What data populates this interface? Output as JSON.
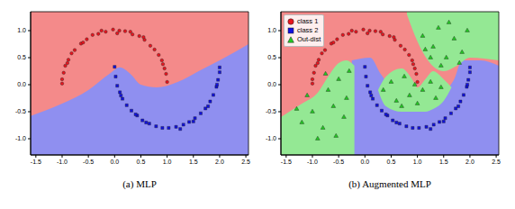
{
  "chart_data": [
    {
      "type": "scatter",
      "title": "(a) MLP",
      "xlim": [
        -1.6,
        2.55
      ],
      "ylim": [
        -1.3,
        1.35
      ],
      "xticks": [
        -1.5,
        {
          "value": -1,
          "label": "-1.0"
        },
        -0.5,
        {
          "value": 0,
          "label": "0.0"
        },
        0.5,
        {
          "value": 1,
          "label": "1.0"
        },
        1.5,
        {
          "value": 2,
          "label": "2.0"
        },
        2.5
      ],
      "yticks": [
        {
          "value": -1,
          "label": "-1.0"
        },
        -0.5,
        {
          "value": 0,
          "label": "0.0"
        },
        0.5,
        {
          "value": 1,
          "label": "1.0"
        }
      ],
      "regions": [
        {
          "color": "#f48a8a",
          "x": [
            -1.6,
            2.55
          ],
          "low": [
            -1.3,
            -1.3
          ],
          "high": [
            1.35,
            1.35
          ]
        },
        {
          "color": "#8f8ff0",
          "x": [
            -1.6,
            -1.0,
            -0.5,
            -0.1,
            0.1,
            0.3,
            0.5,
            0.8,
            1.2,
            1.6,
            2.0,
            2.55
          ],
          "low": [
            -1.3,
            -1.3,
            -1.3,
            -1.3,
            -1.3,
            -1.3,
            -1.3,
            -1.3,
            -1.3,
            -1.3,
            -1.3,
            -1.3
          ],
          "high": [
            -0.58,
            -0.35,
            -0.1,
            0.2,
            0.32,
            0.2,
            0.0,
            -0.05,
            0.05,
            0.25,
            0.45,
            0.75
          ]
        }
      ],
      "series": [
        {
          "color": "#e8141e",
          "marker": "circle",
          "x": [
            1.0,
            0.98,
            0.95,
            0.9,
            0.84,
            0.76,
            0.68,
            0.57,
            0.47,
            0.34,
            0.2,
            0.09,
            -0.03,
            -0.17,
            -0.31,
            -0.42,
            -0.53,
            -0.64,
            -0.76,
            -0.82,
            -0.88,
            -0.94,
            -0.97,
            -1.0,
            -1.0,
            0.05,
            0.55,
            -0.6,
            0.92,
            -0.9,
            0.3,
            -0.25
          ],
          "y": [
            0.05,
            0.2,
            0.3,
            0.45,
            0.55,
            0.65,
            0.72,
            0.83,
            0.9,
            0.93,
            0.99,
            1.0,
            1.02,
            0.98,
            0.94,
            0.92,
            0.84,
            0.76,
            0.64,
            0.58,
            0.46,
            0.35,
            0.22,
            0.1,
            0.02,
            0.95,
            0.88,
            0.78,
            0.38,
            0.4,
            0.98,
            1.0
          ]
        },
        {
          "color": "#1010e0",
          "marker": "square",
          "x": [
            0.0,
            0.02,
            0.05,
            0.1,
            0.15,
            0.23,
            0.32,
            0.43,
            0.53,
            0.66,
            0.79,
            0.91,
            1.03,
            1.17,
            1.31,
            1.42,
            1.53,
            1.64,
            1.73,
            1.82,
            1.88,
            1.94,
            1.97,
            2.0,
            2.0,
            0.12,
            0.6,
            1.25,
            1.78,
            1.95,
            0.4,
            1.5
          ],
          "y": [
            0.33,
            0.15,
            -0.02,
            -0.14,
            -0.26,
            -0.38,
            -0.48,
            -0.57,
            -0.66,
            -0.72,
            -0.77,
            -0.8,
            -0.8,
            -0.78,
            -0.74,
            -0.69,
            -0.62,
            -0.53,
            -0.44,
            -0.31,
            -0.19,
            -0.04,
            0.09,
            0.23,
            0.32,
            -0.2,
            -0.7,
            -0.82,
            -0.4,
            0.0,
            -0.55,
            -0.68
          ]
        }
      ]
    },
    {
      "type": "scatter",
      "title": "(b) Augmented MLP",
      "legend": "upper left",
      "xlim": [
        -1.6,
        2.55
      ],
      "ylim": [
        -1.3,
        1.35
      ],
      "xticks": [
        -1.5,
        {
          "value": -1,
          "label": "-1.0"
        },
        -0.5,
        {
          "value": 0,
          "label": "0.0"
        },
        0.5,
        {
          "value": 1,
          "label": "1.0"
        },
        1.5,
        {
          "value": 2,
          "label": "2.0"
        },
        2.5
      ],
      "yticks": [
        {
          "value": -1,
          "label": "-1.0"
        },
        -0.5,
        {
          "value": 0,
          "label": "0.0"
        },
        0.5,
        {
          "value": 1,
          "label": "1.0"
        }
      ],
      "regions": [
        {
          "color": "#f48a8a",
          "x": [
            -1.6,
            2.55
          ],
          "low": [
            -1.3,
            -1.3
          ],
          "high": [
            1.35,
            1.35
          ]
        },
        {
          "color": "#8f8ff0",
          "x": [
            -0.25,
            0.1,
            0.3,
            0.6,
            1.0,
            1.5,
            1.7,
            1.85,
            2.2,
            2.55
          ],
          "low": [
            -1.3,
            -1.3,
            -1.3,
            -1.3,
            -1.3,
            -1.3,
            -1.3,
            -1.3,
            -1.3,
            -1.3
          ],
          "high": [
            0.45,
            0.5,
            0.2,
            -0.1,
            -0.1,
            -0.1,
            0.1,
            0.45,
            0.45,
            0.35
          ]
        },
        {
          "color": "#94e894",
          "x": [
            -1.6,
            -1.2,
            -0.9,
            -0.7,
            -0.5,
            -0.35,
            -0.2
          ],
          "low": [
            -1.3,
            -1.3,
            -1.3,
            -1.3,
            -1.3,
            -1.3,
            -1.3
          ],
          "high": [
            -0.6,
            -0.35,
            -0.15,
            0.15,
            0.4,
            0.45,
            0.35
          ]
        },
        {
          "color": "#94e894",
          "x": [
            0.25,
            0.4,
            0.7,
            0.9,
            1.0,
            1.15,
            1.3,
            1.5,
            1.65
          ],
          "low": [
            -0.1,
            -0.4,
            -0.5,
            -0.5,
            -0.5,
            -0.5,
            -0.45,
            -0.3,
            -0.05
          ],
          "high": [
            -0.1,
            0.15,
            0.3,
            0.1,
            -0.05,
            0.1,
            0.25,
            0.1,
            -0.05
          ]
        },
        {
          "color": "#94e894",
          "x": [
            0.8,
            1.0,
            1.2,
            1.5,
            1.75,
            2.0,
            2.55
          ],
          "low": [
            1.3,
            0.8,
            0.45,
            0.25,
            0.35,
            0.5,
            0.45
          ],
          "high": [
            1.35,
            1.35,
            1.35,
            1.35,
            1.35,
            1.35,
            1.35
          ]
        }
      ],
      "series": [
        {
          "name": "class 1",
          "color": "#e8141e",
          "marker": "circle",
          "x": [
            1.0,
            0.98,
            0.95,
            0.9,
            0.84,
            0.76,
            0.68,
            0.57,
            0.47,
            0.34,
            0.2,
            0.09,
            -0.03,
            -0.17,
            -0.31,
            -0.42,
            -0.53,
            -0.64,
            -0.76,
            -0.82,
            -0.88,
            -0.94,
            -0.97,
            -1.0,
            -1.0,
            0.05,
            0.55,
            -0.6,
            0.92,
            -0.9,
            0.3,
            -0.25
          ],
          "y": [
            0.05,
            0.2,
            0.3,
            0.45,
            0.55,
            0.65,
            0.72,
            0.83,
            0.9,
            0.93,
            0.99,
            1.0,
            1.02,
            0.98,
            0.94,
            0.92,
            0.84,
            0.76,
            0.64,
            0.58,
            0.46,
            0.35,
            0.22,
            0.1,
            0.02,
            0.95,
            0.88,
            0.78,
            0.38,
            0.4,
            0.98,
            1.0
          ]
        },
        {
          "name": "class 2",
          "color": "#1010e0",
          "marker": "square",
          "x": [
            0.0,
            0.02,
            0.05,
            0.1,
            0.15,
            0.23,
            0.32,
            0.43,
            0.53,
            0.66,
            0.79,
            0.91,
            1.03,
            1.17,
            1.31,
            1.42,
            1.53,
            1.64,
            1.73,
            1.82,
            1.88,
            1.94,
            1.97,
            2.0,
            2.0,
            0.12,
            0.6,
            1.25,
            1.78,
            1.95,
            0.4,
            1.5
          ],
          "y": [
            0.33,
            0.15,
            -0.02,
            -0.14,
            -0.26,
            -0.38,
            -0.48,
            -0.57,
            -0.66,
            -0.72,
            -0.77,
            -0.8,
            -0.8,
            -0.78,
            -0.74,
            -0.69,
            -0.62,
            -0.53,
            -0.44,
            -0.31,
            -0.19,
            -0.04,
            0.09,
            0.23,
            0.32,
            -0.2,
            -0.7,
            -0.82,
            -0.4,
            0.0,
            -0.55,
            -0.68
          ]
        },
        {
          "name": "Out-dist",
          "color": "#22cc22",
          "marker": "triangle",
          "x": [
            -1.2,
            -1.0,
            -0.8,
            -0.6,
            -1.1,
            -0.7,
            -0.5,
            -0.4,
            -0.9,
            -0.3,
            -0.55,
            -1.3,
            -0.75,
            -0.35,
            0.35,
            0.5,
            0.6,
            0.75,
            0.85,
            1.0,
            1.1,
            1.25,
            1.35,
            0.7,
            1.45,
            0.95,
            1.1,
            1.3,
            1.4,
            1.55,
            1.7,
            1.85,
            1.6,
            1.25,
            1.95,
            1.45,
            1.8,
            1.15
          ],
          "y": [
            -0.7,
            -0.5,
            -0.8,
            -0.4,
            -0.2,
            -0.1,
            0.1,
            -0.6,
            -1.0,
            0.25,
            -0.95,
            -0.45,
            0.2,
            -0.25,
            -0.1,
            0.05,
            -0.3,
            0.15,
            -0.2,
            -0.35,
            -0.1,
            0.05,
            -0.25,
            -0.4,
            -0.05,
            0.0,
            0.9,
            0.7,
            1.05,
            0.5,
            0.85,
            0.6,
            1.15,
            0.5,
            1.0,
            0.35,
            0.4,
            0.65
          ]
        }
      ]
    }
  ]
}
